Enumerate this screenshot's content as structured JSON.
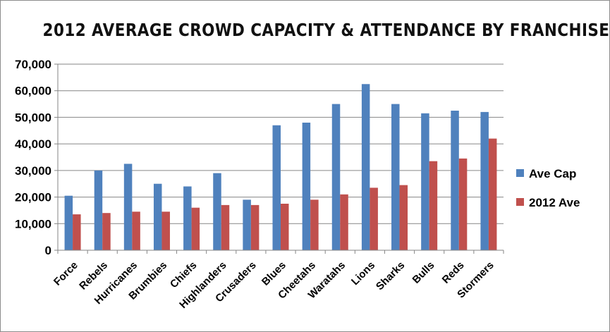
{
  "chart_data": {
    "type": "bar",
    "title": "2012 AVERAGE CROWD CAPACITY & ATTENDANCE BY FRANCHISE",
    "xlabel": "",
    "ylabel": "",
    "ylim": [
      0,
      70000
    ],
    "yticks": [
      0,
      10000,
      20000,
      30000,
      40000,
      50000,
      60000,
      70000
    ],
    "ytick_labels": [
      "0",
      "10,000",
      "20,000",
      "30,000",
      "40,000",
      "50,000",
      "60,000",
      "70,000"
    ],
    "grid": true,
    "legend_position": "right",
    "categories": [
      "Force",
      "Rebels",
      "Hurricanes",
      "Brumbies",
      "Chiefs",
      "Highlanders",
      "Crusaders",
      "Blues",
      "Cheetahs",
      "Waratahs",
      "Lions",
      "Sharks",
      "Bulls",
      "Reds",
      "Stormers"
    ],
    "series": [
      {
        "name": "Ave Cap",
        "color": "#4f81bd",
        "values": [
          20500,
          30000,
          32500,
          25000,
          24000,
          29000,
          19000,
          47000,
          48000,
          55000,
          62500,
          55000,
          51500,
          52500,
          52000
        ]
      },
      {
        "name": "2012 Ave",
        "color": "#c0504d",
        "values": [
          13500,
          14000,
          14500,
          14500,
          16000,
          17000,
          17000,
          17500,
          19000,
          21000,
          23500,
          24500,
          33500,
          34500,
          42000
        ]
      }
    ]
  }
}
